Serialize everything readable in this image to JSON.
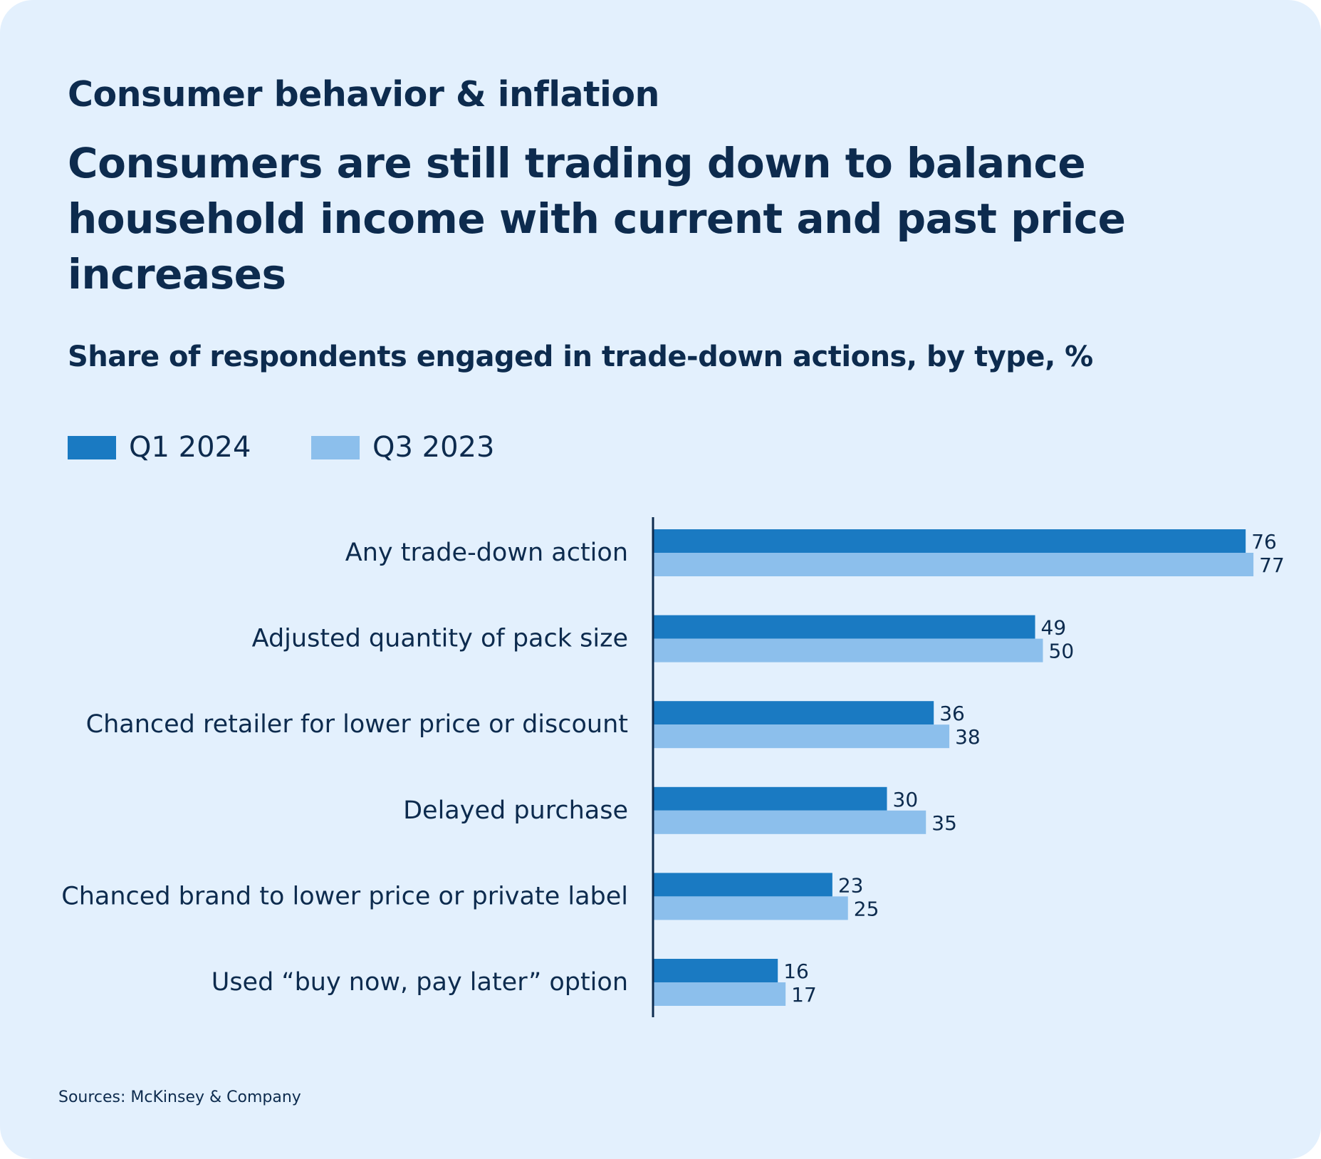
{
  "header": {
    "kicker": "Consumer behavior & inflation",
    "headline": "Consumers are still trading down to balance household income with current and past price increases"
  },
  "footer": {
    "source": "Sources: McKinsey & Company"
  },
  "colors": {
    "background": "#e3f0fd",
    "text": "#0d2b4e",
    "q1_2024": "#1a7ac2",
    "q3_2023": "#8cbfec",
    "axis": "#0d2b4e"
  },
  "chart_data": {
    "type": "bar",
    "orientation": "horizontal",
    "title": "Share of respondents engaged in trade-down actions, by type, %",
    "categories": [
      "Any trade-down action",
      "Adjusted quantity of pack size",
      "Chanced retailer for lower price or discount",
      "Delayed purchase",
      "Chanced brand to lower price or private label",
      "Used “buy now, pay later” option"
    ],
    "series": [
      {
        "name": "Q1 2024",
        "color": "#1a7ac2",
        "values": [
          76,
          49,
          36,
          30,
          23,
          16
        ]
      },
      {
        "name": "Q3 2023",
        "color": "#8cbfec",
        "values": [
          77,
          50,
          38,
          35,
          25,
          17
        ]
      }
    ],
    "xlim": [
      0,
      100
    ],
    "legend": "top-left",
    "grid": false,
    "data_labels": true
  }
}
